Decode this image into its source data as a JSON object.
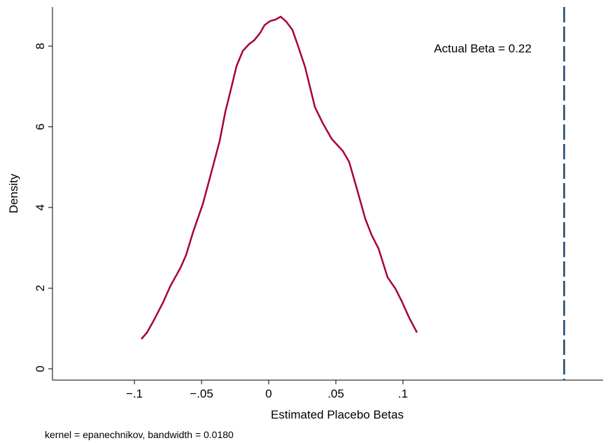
{
  "chart_data": {
    "type": "line",
    "x_label": "Estimated Placebo Betas",
    "y_label": "Density",
    "note": "kernel = epanechnikov, bandwidth = 0.0180",
    "annotation": "Actual Beta = 0.22",
    "reference_x": 0.22,
    "reference_color": "#1a476f",
    "color": "#a6003b",
    "x": [
      -0.0948,
      -0.0906,
      -0.0854,
      -0.0786,
      -0.0734,
      -0.0656,
      -0.0615,
      -0.0563,
      -0.049,
      -0.0432,
      -0.0365,
      -0.0323,
      -0.0276,
      -0.024,
      -0.0193,
      -0.0146,
      -0.0109,
      -0.0063,
      -0.0031,
      0.001,
      0.0052,
      0.0089,
      0.013,
      0.0177,
      0.0219,
      0.0271,
      0.0344,
      0.0401,
      0.0469,
      0.0552,
      0.0599,
      0.0656,
      0.0719,
      0.0766,
      0.0818,
      0.0885,
      0.0943,
      0.099,
      0.1047,
      0.1104
    ],
    "values": [
      0.74,
      0.9,
      1.21,
      1.65,
      2.04,
      2.51,
      2.82,
      3.39,
      4.09,
      4.81,
      5.65,
      6.37,
      7.0,
      7.5,
      7.88,
      8.05,
      8.14,
      8.33,
      8.52,
      8.62,
      8.66,
      8.73,
      8.61,
      8.4,
      8.0,
      7.48,
      6.49,
      6.1,
      5.7,
      5.4,
      5.13,
      4.47,
      3.72,
      3.32,
      2.98,
      2.27,
      1.99,
      1.68,
      1.26,
      0.9
    ],
    "xlim": [
      -0.161,
      0.249
    ],
    "ylim": [
      -0.28,
      8.97
    ],
    "xticks": [
      {
        "value": -0.1,
        "label": "−.1"
      },
      {
        "value": -0.05,
        "label": "−.05"
      },
      0,
      {
        "value": 0.05,
        "label": ".05"
      },
      {
        "value": 0.1,
        "label": ".1"
      }
    ],
    "yticks": [
      0,
      2,
      4,
      6,
      8
    ]
  }
}
